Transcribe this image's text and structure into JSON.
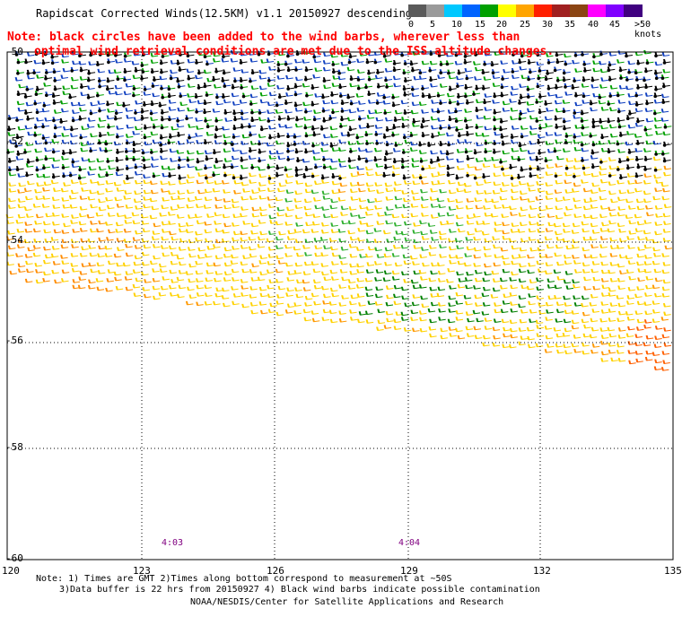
{
  "title": "Rapidscat Corrected Winds(12.5KM) v1.1 20150927 descending",
  "note_line1": "Note: black circles have been added to the wind barbs, wherever less than",
  "note_line2": "optimal wind retrieval conditions are met due to the ISS altitude changes.",
  "color_scale": {
    "labels": [
      "0",
      "5",
      "10",
      "15",
      "20",
      "25",
      "30",
      "35",
      "40",
      "45",
      ">50 knots"
    ],
    "colors": [
      "#5a5a5a",
      "#9a9a9a",
      "#00c8ff",
      "#0064ff",
      "#00a000",
      "#ffff00",
      "#ffa500",
      "#ff2000",
      "#a02020",
      "#8b4513",
      "#ff00ff",
      "#8000ff",
      "#400080"
    ]
  },
  "map": {
    "lat_labels": [
      "-50",
      "-52",
      "-54",
      "-56",
      "-58",
      "-60"
    ],
    "lon_labels": [
      "120",
      "123",
      "126",
      "129",
      "132",
      "135"
    ],
    "time_labels": [
      "4:03",
      "4:04"
    ]
  },
  "footer": {
    "line1": "Note: 1) Times are GMT 2)Times along bottom correspond to measurement at ~50S",
    "line2": "3)Data buffer is 22 hrs from 20150927 4) Black wind barbs indicate possible contamination",
    "line3": "NOAA/NESDIS/Center for Satellite Applications and Research"
  }
}
